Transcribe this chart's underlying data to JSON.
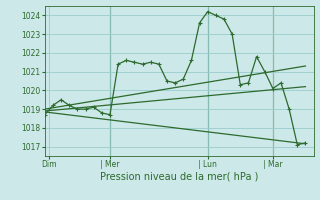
{
  "background_color": "#cce8e8",
  "grid_color": "#99cccc",
  "line_color": "#2d6a2d",
  "title": "Pression niveau de la mer( hPa )",
  "ylim": [
    1016.5,
    1024.5
  ],
  "yticks": [
    1017,
    1018,
    1019,
    1020,
    1021,
    1022,
    1023,
    1024
  ],
  "day_labels": [
    "Dim",
    "| Mer",
    "| Lun",
    "| Mar"
  ],
  "day_positions": [
    0.5,
    8,
    20,
    28
  ],
  "xlim": [
    0,
    33
  ],
  "main_x": [
    0,
    1,
    2,
    3,
    4,
    5,
    6,
    7,
    8,
    9,
    10,
    11,
    12,
    13,
    14,
    15,
    16,
    17,
    18,
    19,
    20,
    21,
    22,
    23,
    24,
    25,
    26,
    27,
    28,
    29,
    30,
    31,
    32
  ],
  "main_y": [
    1018.7,
    1019.2,
    1019.5,
    1019.2,
    1019.0,
    1019.0,
    1019.1,
    1018.8,
    1018.7,
    1021.4,
    1021.6,
    1021.5,
    1021.4,
    1021.5,
    1021.4,
    1020.5,
    1020.4,
    1020.6,
    1021.6,
    1023.6,
    1024.2,
    1024.0,
    1023.8,
    1023.0,
    1020.3,
    1020.4,
    1021.8,
    1021.0,
    1020.1,
    1020.4,
    1019.0,
    1017.1,
    1017.2
  ],
  "trend1_x": [
    0,
    32
  ],
  "trend1_y": [
    1019.0,
    1021.3
  ],
  "trend2_x": [
    0,
    32
  ],
  "trend2_y": [
    1018.9,
    1020.2
  ],
  "trend3_x": [
    0,
    32
  ],
  "trend3_y": [
    1018.85,
    1017.15
  ],
  "vline_positions": [
    8,
    20,
    28
  ]
}
